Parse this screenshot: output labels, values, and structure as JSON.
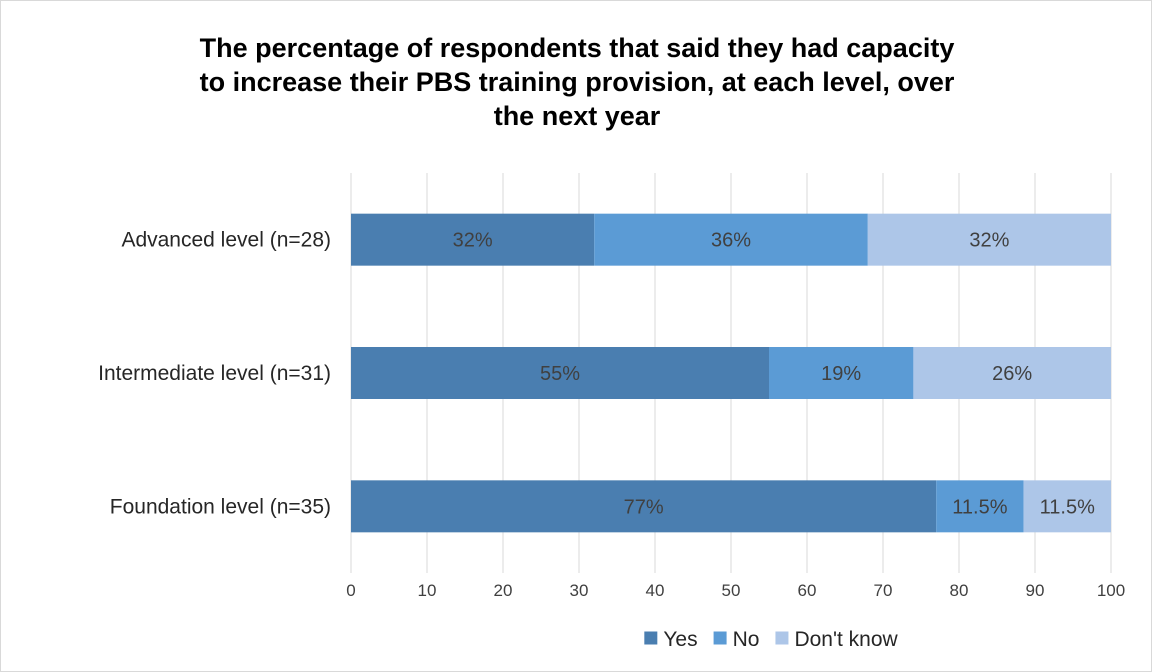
{
  "chart_data": {
    "type": "bar",
    "orientation": "horizontal",
    "stacked": true,
    "title_lines": [
      "The percentage of respondents that said they had capacity",
      "to increase their PBS training provision, at each level, over",
      "the next year"
    ],
    "categories": [
      "Advanced level (n=28)",
      "Intermediate level (n=31)",
      "Foundation level (n=35)"
    ],
    "series": [
      {
        "name": "Yes",
        "values": [
          32,
          55,
          77
        ],
        "labels": [
          "32%",
          "55%",
          "77%"
        ],
        "color": "#4a7eb0"
      },
      {
        "name": "No",
        "values": [
          36,
          19,
          11.5
        ],
        "labels": [
          "36%",
          "19%",
          "11.5%"
        ],
        "color": "#5b9bd5"
      },
      {
        "name": "Don't know",
        "values": [
          32,
          26,
          11.5
        ],
        "labels": [
          "32%",
          "26%",
          "11.5%"
        ],
        "color": "#adc6e8"
      }
    ],
    "xlim": [
      0,
      100
    ],
    "xticks": [
      "0",
      "10",
      "20",
      "30",
      "40",
      "50",
      "60",
      "70",
      "80",
      "90",
      "100"
    ],
    "grid": true,
    "legend_position": "bottom"
  }
}
